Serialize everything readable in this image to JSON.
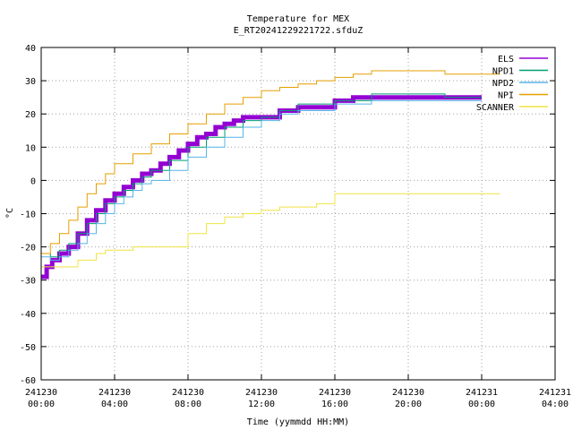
{
  "chart_data": {
    "type": "line",
    "title": "Temperature for MEX",
    "subtitle": "E_RT20241229221722.sfduZ",
    "xlabel": "Time (yymmdd HH:MM)",
    "ylabel": "°C",
    "xlim": [
      0,
      28
    ],
    "ylim": [
      -60,
      40
    ],
    "grid": true,
    "legend_position": "top-right",
    "x_ticks": [
      {
        "x": 0,
        "date": "241230",
        "time": "00:00"
      },
      {
        "x": 4,
        "date": "241230",
        "time": "04:00"
      },
      {
        "x": 8,
        "date": "241230",
        "time": "08:00"
      },
      {
        "x": 12,
        "date": "241230",
        "time": "12:00"
      },
      {
        "x": 16,
        "date": "241230",
        "time": "16:00"
      },
      {
        "x": 20,
        "date": "241230",
        "time": "20:00"
      },
      {
        "x": 24,
        "date": "241231",
        "time": "00:00"
      },
      {
        "x": 28,
        "date": "241231",
        "time": "04:00"
      }
    ],
    "y_ticks": [
      40,
      30,
      20,
      10,
      0,
      -10,
      -20,
      -30,
      -40,
      -50,
      -60
    ],
    "series": [
      {
        "name": "ELS",
        "color": "#9400d3",
        "width": 5,
        "step": true,
        "x": [
          0,
          0.3,
          0.6,
          1,
          1.5,
          2,
          2.5,
          3,
          3.5,
          4,
          4.5,
          5,
          5.5,
          6,
          6.5,
          7,
          7.5,
          8,
          8.5,
          9,
          9.5,
          10,
          10.5,
          11,
          11.5,
          12,
          13,
          14,
          15,
          16,
          17,
          18,
          20,
          22,
          24
        ],
        "y": [
          -29,
          -26,
          -24,
          -22,
          -20,
          -16,
          -12,
          -9,
          -6,
          -4,
          -2,
          0,
          2,
          3,
          5,
          7,
          9,
          11,
          13,
          14,
          16,
          17,
          18,
          19,
          19,
          19,
          21,
          22,
          22,
          24,
          25,
          25,
          25,
          25,
          25
        ]
      },
      {
        "name": "NPD1",
        "color": "#009e73",
        "width": 1,
        "step": true,
        "x": [
          0,
          0.5,
          1,
          1.5,
          2,
          2.5,
          3,
          3.5,
          4,
          4.5,
          5,
          5.5,
          6,
          7,
          8,
          9,
          10,
          11,
          12,
          13,
          14,
          16,
          18,
          20,
          22,
          24
        ],
        "y": [
          -22,
          -23,
          -21,
          -19,
          -16,
          -13,
          -10,
          -7,
          -5,
          -3,
          -1,
          1,
          3,
          6,
          10,
          13,
          16,
          18,
          19,
          21,
          23,
          24,
          26,
          26,
          25,
          25
        ]
      },
      {
        "name": "NPD2",
        "color": "#56b4e9",
        "width": 1,
        "step": true,
        "x": [
          0,
          0.5,
          1,
          1.5,
          2,
          2.5,
          3,
          3.5,
          4,
          4.5,
          5,
          5.5,
          6,
          7,
          8,
          9,
          10,
          11,
          12,
          13,
          14,
          16,
          18,
          20,
          22,
          24
        ],
        "y": [
          -23,
          -24,
          -23,
          -21,
          -19,
          -16,
          -13,
          -10,
          -7,
          -5,
          -3,
          -1,
          0,
          3,
          7,
          10,
          13,
          16,
          18,
          20,
          21,
          23,
          24,
          24,
          24,
          24
        ]
      },
      {
        "name": "NPI",
        "color": "#e69f00",
        "width": 1,
        "step": true,
        "x": [
          0,
          0.5,
          1,
          1.5,
          2,
          2.5,
          3,
          3.5,
          4,
          5,
          6,
          7,
          8,
          9,
          10,
          11,
          12,
          13,
          14,
          15,
          16,
          17,
          18,
          19,
          20,
          21,
          22,
          24,
          25
        ],
        "y": [
          -22,
          -19,
          -16,
          -12,
          -8,
          -4,
          -1,
          2,
          5,
          8,
          11,
          14,
          17,
          20,
          23,
          25,
          27,
          28,
          29,
          30,
          31,
          32,
          33,
          33,
          33,
          33,
          32,
          32,
          32
        ]
      },
      {
        "name": "SCANNER",
        "color": "#f0e442",
        "width": 1,
        "step": true,
        "x": [
          0,
          1,
          2,
          3,
          3.5,
          4,
          5,
          6,
          7,
          8,
          9,
          10,
          11,
          12,
          13,
          14,
          15,
          16,
          17,
          18,
          19,
          20,
          21,
          22,
          23,
          24,
          25
        ],
        "y": [
          -26,
          -26,
          -24,
          -22,
          -21,
          -21,
          -20,
          -20,
          -20,
          -16,
          -13,
          -11,
          -10,
          -9,
          -8,
          -8,
          -7,
          -4,
          -4,
          -4,
          -4,
          -4,
          -4,
          -4,
          -4,
          -4,
          -4
        ]
      }
    ]
  }
}
